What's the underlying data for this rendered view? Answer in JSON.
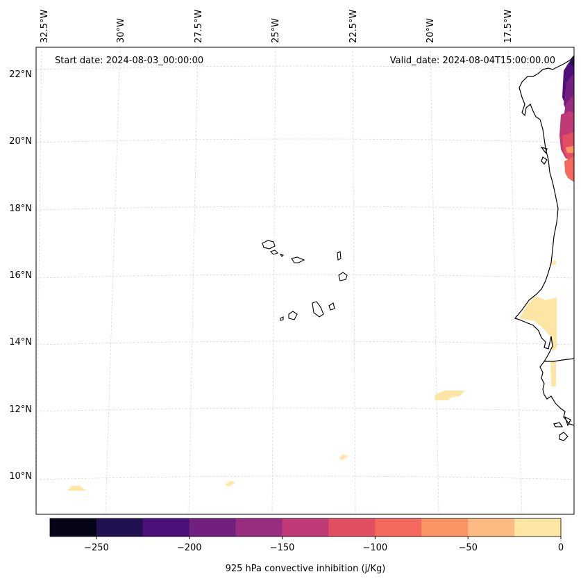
{
  "header": {
    "start_date": "Start date: 2024-08-03_00:00:00",
    "valid_date": "Valid_date: 2024-08-04T15:00:00.00"
  },
  "longitude_labels": [
    "32.5°W",
    "30°W",
    "27.5°W",
    "25°W",
    "22.5°W",
    "20°W",
    "17.5°W"
  ],
  "latitude_labels": [
    "22°N",
    "20°N",
    "18°N",
    "16°N",
    "14°N",
    "12°N",
    "10°N"
  ],
  "colorbar": {
    "label": "925 hPa convective inhibition (j/Kg)",
    "tick_labels": [
      "−250",
      "−200",
      "−150",
      "−100",
      "−50",
      "0"
    ],
    "bounds": [
      -275,
      0
    ],
    "levels": [
      -275,
      -250,
      -225,
      -200,
      -175,
      -150,
      -125,
      -100,
      -75,
      -50,
      -25,
      0
    ],
    "colors": [
      "#050417",
      "#221150",
      "#4d0f7a",
      "#72207f",
      "#982d80",
      "#bf3a77",
      "#e24f63",
      "#f4695b",
      "#fc9363",
      "#feba80",
      "#fde5a3"
    ]
  },
  "colors": {
    "coastline": "#000000",
    "gridline": "#d9d9d9",
    "frame": "#000000"
  }
}
